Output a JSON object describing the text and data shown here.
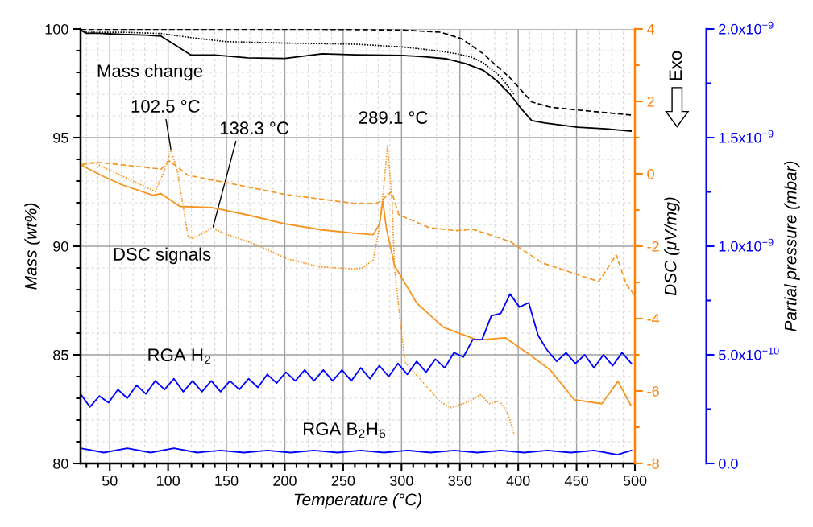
{
  "chart_data": {
    "type": "line",
    "xlabel": "Temperature (°C)",
    "ylabel": "Mass (wt%)",
    "y2label": "DSC (μV/mg)",
    "y3label": "Partial pressure (mbar)",
    "xlim": [
      25,
      500
    ],
    "xticks": [
      50,
      100,
      150,
      200,
      250,
      300,
      350,
      400,
      450,
      500
    ],
    "ylim": [
      80,
      100
    ],
    "yticks": [
      80,
      85,
      90,
      95,
      100
    ],
    "y2lim": [
      -8,
      4
    ],
    "y2ticks": [
      -8,
      -6,
      -4,
      -2,
      0,
      2,
      4
    ],
    "y3lim": [
      0,
      2e-09
    ],
    "y3ticks": [
      {
        "value": 0,
        "label": "0.0"
      },
      {
        "value": 5e-10,
        "label": "5.0x10$^{−10}$"
      },
      {
        "value": 1e-09,
        "label": "1.0x10$^{−9}$"
      },
      {
        "value": 1.5e-09,
        "label": "1.5x10$^{−9}$"
      },
      {
        "value": 2e-09,
        "label": "2.0x10$^{−9}$"
      }
    ],
    "grid": true,
    "series": [
      {
        "axis": "y",
        "color": "#000000",
        "line_style": "solid",
        "x": [
          25,
          30,
          40,
          60,
          80,
          94,
          105,
          119.6,
          140,
          168,
          200,
          232,
          260,
          301,
          320,
          338,
          355,
          370,
          382,
          393,
          403,
          411.6,
          423,
          451,
          475,
          496.6
        ],
        "values": [
          99.95,
          99.8,
          99.8,
          99.75,
          99.72,
          99.67,
          99.3,
          98.8,
          98.8,
          98.67,
          98.64,
          98.86,
          98.81,
          98.78,
          98.72,
          98.63,
          98.4,
          98.1,
          97.6,
          97.0,
          96.3,
          95.78,
          95.67,
          95.48,
          95.4,
          95.3
        ]
      },
      {
        "axis": "y",
        "color": "#000000",
        "line_style": "dotted",
        "x": [
          25,
          30,
          60,
          94,
          120,
          149,
          200,
          260,
          301,
          330,
          347,
          360,
          370,
          385,
          396.5
        ],
        "values": [
          99.95,
          99.85,
          99.85,
          99.79,
          99.6,
          99.42,
          99.35,
          99.3,
          99.17,
          99.0,
          98.86,
          98.7,
          98.44,
          97.8,
          97.0
        ]
      },
      {
        "axis": "y",
        "color": "#000000",
        "line_style": "dashed",
        "x": [
          25,
          30,
          60,
          100,
          150,
          200,
          232,
          260,
          301,
          333.6,
          351.5,
          370,
          393,
          411.6,
          427.5,
          451,
          475,
          496.6
        ],
        "values": [
          99.98,
          99.98,
          99.98,
          99.98,
          99.98,
          99.98,
          99.98,
          99.97,
          99.95,
          99.85,
          99.55,
          98.86,
          97.75,
          96.64,
          96.4,
          96.27,
          96.15,
          96.04
        ]
      },
      {
        "axis": "y2",
        "color": "#f7941d",
        "line_style": "solid",
        "x": [
          25,
          40,
          60,
          87,
          94,
          110,
          137.5,
          170,
          200,
          232,
          260,
          275.7,
          281,
          284,
          287,
          294,
          313,
          336,
          365,
          389,
          411.6,
          427.5,
          448,
          471.7,
          485.5,
          496.6
        ],
        "values": [
          0.25,
          0,
          -0.3,
          -0.59,
          -0.55,
          -0.9,
          -0.93,
          -1.15,
          -1.38,
          -1.55,
          -1.64,
          -1.68,
          -1.4,
          -0.76,
          -1.5,
          -2.53,
          -3.57,
          -4.24,
          -4.59,
          -4.53,
          -5.04,
          -5.42,
          -6.24,
          -6.35,
          -5.73,
          -6.4
        ]
      },
      {
        "axis": "y2",
        "color": "#f7941d",
        "line_style": "dotted",
        "x": [
          25,
          37,
          60,
          89,
          97,
          102.5,
          108,
          117,
          119.6,
          130,
          137.5,
          151,
          175,
          202,
          230,
          260,
          266.7,
          275.7,
          280.5,
          285,
          288,
          292,
          294,
          299,
          303,
          315,
          333.6,
          342.6,
          356.4,
          368,
          375,
          384,
          391,
          396.5
        ],
        "values": [
          0.25,
          0.3,
          -0.05,
          -0.49,
          0.1,
          0.65,
          0.07,
          -1.71,
          -1.79,
          -1.65,
          -1.5,
          -1.68,
          -1.95,
          -2.35,
          -2.57,
          -2.63,
          -2.6,
          -2.38,
          -1.57,
          -0.3,
          0.8,
          -0.82,
          -2.6,
          -4.09,
          -5.2,
          -5.64,
          -6.31,
          -6.46,
          -6.31,
          -6.1,
          -6.35,
          -6.27,
          -6.61,
          -7.2
        ]
      },
      {
        "axis": "y2",
        "color": "#f7941d",
        "line_style": "dashed",
        "x": [
          25,
          37,
          60,
          94,
          101,
          117,
          149,
          200,
          260,
          278,
          282,
          291.5,
          297.7,
          324,
          347,
          361,
          393,
          420.6,
          469,
          484,
          492.6,
          499.5
        ],
        "values": [
          0.25,
          0.32,
          0.25,
          0.13,
          0.36,
          -0.04,
          -0.24,
          -0.57,
          -0.82,
          -0.82,
          -0.76,
          -0.49,
          -1.13,
          -1.49,
          -1.57,
          -1.53,
          -1.87,
          -2.46,
          -2.98,
          -2.24,
          -3.05,
          -3.35
        ]
      },
      {
        "axis": "y3",
        "color": "#0000ff",
        "line_style": "solid",
        "x": [
          25,
          33,
          41,
          49,
          57,
          65,
          73,
          81,
          89,
          97,
          105,
          113,
          121,
          129,
          137,
          145,
          153,
          161,
          169,
          177,
          185,
          193,
          201,
          209,
          217,
          225,
          233,
          241,
          249,
          257,
          265,
          273,
          281,
          289,
          297,
          305,
          313,
          321,
          329,
          337,
          345,
          353,
          361,
          369,
          377,
          385,
          393,
          401,
          409,
          417,
          425,
          433,
          441,
          449,
          457,
          465,
          473,
          481,
          489,
          497
        ],
        "values": [
          3.2e-10,
          2.6e-10,
          3.1e-10,
          2.8e-10,
          3.4e-10,
          3e-10,
          3.6e-10,
          3.2e-10,
          3.8e-10,
          3.4e-10,
          3.9e-10,
          3.3e-10,
          3.8e-10,
          3.3e-10,
          3.8e-10,
          3.3e-10,
          3.8e-10,
          3.4e-10,
          3.9e-10,
          3.5e-10,
          4.1e-10,
          3.7e-10,
          4.2e-10,
          3.8e-10,
          4.3e-10,
          3.8e-10,
          4.3e-10,
          3.8e-10,
          4.3e-10,
          3.8e-10,
          4.4e-10,
          3.9e-10,
          4.5e-10,
          4e-10,
          4.6e-10,
          4.1e-10,
          4.7e-10,
          4.2e-10,
          4.8e-10,
          4.4e-10,
          5.1e-10,
          4.9e-10,
          5.7e-10,
          5.7e-10,
          6.8e-10,
          6.9e-10,
          7.8e-10,
          7.2e-10,
          7.4e-10,
          5.9e-10,
          5.2e-10,
          4.7e-10,
          5.1e-10,
          4.6e-10,
          5e-10,
          4.4e-10,
          5e-10,
          4.5e-10,
          5.1e-10,
          4.6e-10
        ]
      },
      {
        "axis": "y3",
        "color": "#0000ff",
        "line_style": "solid",
        "x": [
          25,
          45,
          65,
          85,
          105,
          125,
          145,
          165,
          185,
          205,
          225,
          245,
          265,
          285,
          305,
          325,
          345,
          365,
          385,
          405,
          425,
          445,
          465,
          485,
          497
        ],
        "values": [
          7e-11,
          5e-11,
          7e-11,
          5e-11,
          7e-11,
          5e-11,
          6e-11,
          5e-11,
          6e-11,
          5e-11,
          6e-11,
          5e-11,
          6e-11,
          5e-11,
          6e-11,
          5e-11,
          6e-11,
          5e-11,
          6e-11,
          5e-11,
          6e-11,
          5e-11,
          6e-11,
          4e-11,
          6e-11
        ]
      }
    ],
    "annotations": [
      "Mass change",
      "DSC signals",
      "RGA H$_{2}$",
      "RGA B$_{2}$H$_{6}$",
      "Exo",
      {
        "text": "102.5 °C",
        "x": 102.5,
        "y": 94.42
      },
      {
        "text": "138.3 °C",
        "x": 138.3,
        "y": 90.84
      },
      {
        "text": "289.1 °C",
        "x": 289.1,
        "y": 94.67
      }
    ]
  }
}
